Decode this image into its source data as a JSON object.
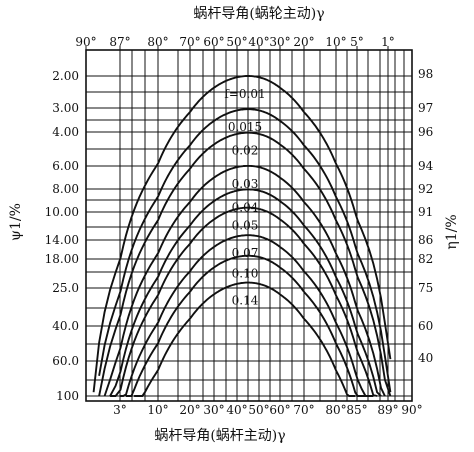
{
  "chart_data": {
    "type": "line",
    "title_top": "蜗杆导角(蜗轮主动)γ",
    "title_bottom": "蜗杆导角(蜗杆主动)γ",
    "ylabel_left": "ψ1/%",
    "ylabel_right": "η1/%",
    "top_ticks": [
      "90°",
      "87°",
      "80°",
      "70°",
      "60°",
      "50°",
      "40°",
      "30°",
      "20°",
      "10°",
      "5°",
      "1°"
    ],
    "bottom_ticks": [
      "3°",
      "10°",
      "20°",
      "30°",
      "40°",
      "50°",
      "60°",
      "70°",
      "80°",
      "85°",
      "89°",
      "90°"
    ],
    "left_ticks": [
      "2.00",
      "3.00",
      "4.00",
      "6.00",
      "8.00",
      "10.00",
      "14.00",
      "18.00",
      "25.0",
      "40.0",
      "60.0",
      "100"
    ],
    "right_ticks": [
      "98",
      "97",
      "96",
      "94",
      "92",
      "91",
      "86",
      "82",
      "75",
      "60",
      "40"
    ],
    "series": [
      {
        "name": "f=0.01",
        "peak_psi": 2.0
      },
      {
        "name": "0.015",
        "peak_psi": 3.0
      },
      {
        "name": "0.02",
        "peak_psi": 4.0
      },
      {
        "name": "0.03",
        "peak_psi": 6.0
      },
      {
        "name": "0.04",
        "peak_psi": 8.0
      },
      {
        "name": "0.05",
        "peak_psi": 10.0
      },
      {
        "name": "0.07",
        "peak_psi": 14.0
      },
      {
        "name": "0.10",
        "peak_psi": 18.0
      },
      {
        "name": "0.14",
        "peak_psi": 25.0
      }
    ],
    "grid": true
  }
}
